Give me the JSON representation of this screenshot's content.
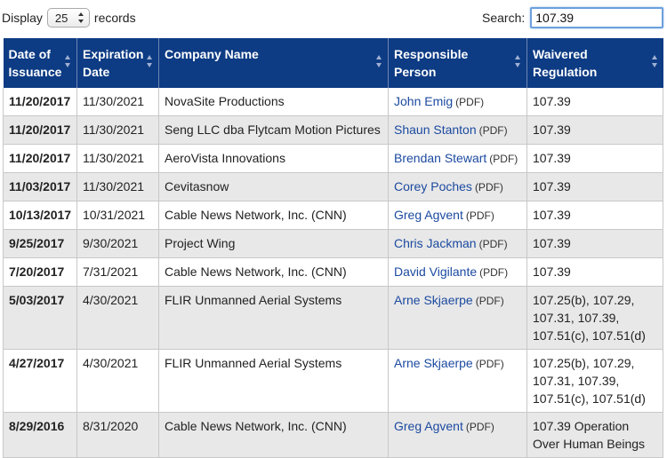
{
  "length_control": {
    "prefix": "Display",
    "value": "25",
    "suffix": "records"
  },
  "search": {
    "label": "Search:",
    "value": "107.39"
  },
  "columns": [
    "Date of Issuance",
    "Expiration Date",
    "Company Name",
    "Responsible Person",
    "Waivered Regulation"
  ],
  "rows": [
    {
      "issued": "11/20/2017",
      "expires": "11/30/2021",
      "company": "NovaSite Productions",
      "person": "John Emig",
      "pdf": "(PDF)",
      "regulation": "107.39"
    },
    {
      "issued": "11/20/2017",
      "expires": "11/30/2021",
      "company": "Seng LLC dba Flytcam Motion Pictures",
      "person": "Shaun Stanton",
      "pdf": "(PDF)",
      "regulation": "107.39"
    },
    {
      "issued": "11/20/2017",
      "expires": "11/30/2021",
      "company": "AeroVista Innovations",
      "person": "Brendan Stewart",
      "pdf": "(PDF)",
      "regulation": "107.39"
    },
    {
      "issued": "11/03/2017",
      "expires": "11/30/2021",
      "company": "Cevitasnow",
      "person": "Corey Poches",
      "pdf": "(PDF)",
      "regulation": "107.39"
    },
    {
      "issued": "10/13/2017",
      "expires": "10/31/2021",
      "company": "Cable News Network, Inc. (CNN)",
      "person": "Greg Agvent",
      "pdf": "(PDF)",
      "regulation": "107.39"
    },
    {
      "issued": "9/25/2017",
      "expires": "9/30/2021",
      "company": "Project Wing",
      "person": "Chris Jackman",
      "pdf": "(PDF)",
      "regulation": "107.39"
    },
    {
      "issued": "7/20/2017",
      "expires": "7/31/2021",
      "company": "Cable News Network, Inc. (CNN)",
      "person": "David Vigilante",
      "pdf": "(PDF)",
      "regulation": "107.39"
    },
    {
      "issued": "5/03/2017",
      "expires": "4/30/2021",
      "company": "FLIR Unmanned Aerial Systems",
      "person": "Arne Skjaerpe",
      "pdf": "(PDF)",
      "regulation": "107.25(b), 107.29, 107.31, 107.39, 107.51(c), 107.51(d)"
    },
    {
      "issued": "4/27/2017",
      "expires": "4/30/2021",
      "company": "FLIR Unmanned Aerial Systems",
      "person": "Arne Skjaerpe",
      "pdf": "(PDF)",
      "regulation": "107.25(b), 107.29, 107.31, 107.39, 107.51(c), 107.51(d)"
    },
    {
      "issued": "8/29/2016",
      "expires": "8/31/2020",
      "company": "Cable News Network, Inc. (CNN)",
      "person": "Greg Agvent",
      "pdf": "(PDF)",
      "regulation": "107.39 Operation Over Human Beings"
    }
  ],
  "colors": {
    "header_bg": "#0d3b84",
    "link": "#1c4aa0",
    "stripe": "#e8e8e8"
  }
}
